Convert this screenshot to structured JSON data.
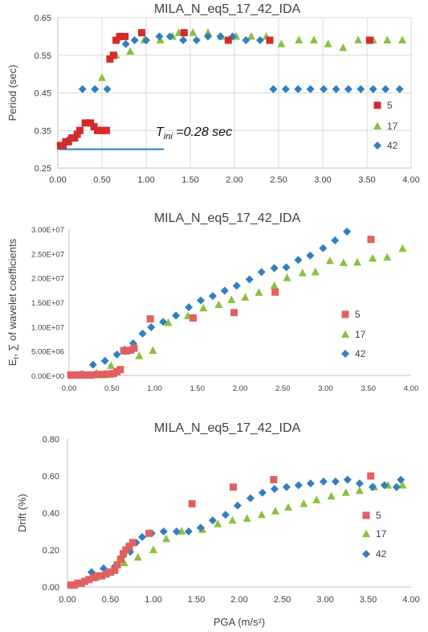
{
  "colors": {
    "s5": "#d42a2a",
    "s5_light": "#e06060",
    "s17": "#8cbf3f",
    "s42": "#2f7fc1",
    "annotation_line": "#1f85c0",
    "grid": "#d9d9d9"
  },
  "chart_data": [
    {
      "type": "scatter",
      "title": "MILA_N_eq5_17_42_IDA",
      "xlabel": "",
      "ylabel": "Period (sec)",
      "xlim": [
        0,
        4
      ],
      "ylim": [
        0.25,
        0.65
      ],
      "xticks": [
        "0.00",
        "0.50",
        "1.00",
        "1.50",
        "2.00",
        "2.50",
        "3.00",
        "3.50",
        "4.00"
      ],
      "yticks": [
        "0.25",
        "0.35",
        "0.45",
        "0.55",
        "0.65"
      ],
      "grid": true,
      "legend_position": "right",
      "annotation": {
        "base": "T",
        "sub": "ini",
        "text": " =0.28 sec",
        "line_y": 0.3,
        "line_x": [
          0,
          1.2
        ]
      },
      "series": [
        {
          "name": "5",
          "marker": "square",
          "points": [
            [
              0.03,
              0.31
            ],
            [
              0.06,
              0.31
            ],
            [
              0.09,
              0.32
            ],
            [
              0.12,
              0.32
            ],
            [
              0.16,
              0.33
            ],
            [
              0.19,
              0.33
            ],
            [
              0.22,
              0.34
            ],
            [
              0.25,
              0.35
            ],
            [
              0.31,
              0.37
            ],
            [
              0.37,
              0.37
            ],
            [
              0.41,
              0.36
            ],
            [
              0.45,
              0.35
            ],
            [
              0.48,
              0.35
            ],
            [
              0.52,
              0.35
            ],
            [
              0.55,
              0.35
            ],
            [
              0.59,
              0.54
            ],
            [
              0.63,
              0.55
            ],
            [
              0.66,
              0.59
            ],
            [
              0.7,
              0.6
            ],
            [
              0.76,
              0.6
            ],
            [
              0.95,
              0.61
            ],
            [
              1.43,
              0.61
            ],
            [
              1.93,
              0.59
            ],
            [
              2.4,
              0.59
            ],
            [
              3.53,
              0.59
            ]
          ]
        },
        {
          "name": "17",
          "marker": "triangle",
          "points": [
            [
              0.19,
              0.33
            ],
            [
              0.34,
              0.37
            ],
            [
              0.5,
              0.49
            ],
            [
              0.66,
              0.55
            ],
            [
              0.82,
              0.56
            ],
            [
              0.98,
              0.59
            ],
            [
              1.16,
              0.59
            ],
            [
              1.3,
              0.6
            ],
            [
              1.37,
              0.61
            ],
            [
              1.53,
              0.61
            ],
            [
              1.7,
              0.61
            ],
            [
              1.85,
              0.6
            ],
            [
              2.02,
              0.6
            ],
            [
              2.19,
              0.6
            ],
            [
              2.36,
              0.6
            ],
            [
              2.53,
              0.58
            ],
            [
              2.73,
              0.59
            ],
            [
              2.9,
              0.59
            ],
            [
              3.06,
              0.58
            ],
            [
              3.23,
              0.57
            ],
            [
              3.4,
              0.59
            ],
            [
              3.57,
              0.59
            ],
            [
              3.73,
              0.59
            ],
            [
              3.9,
              0.59
            ]
          ]
        },
        {
          "name": "42",
          "marker": "diamond",
          "points": [
            [
              0.14,
              0.33
            ],
            [
              0.28,
              0.46
            ],
            [
              0.42,
              0.46
            ],
            [
              0.56,
              0.46
            ],
            [
              0.67,
              0.59
            ],
            [
              0.77,
              0.58
            ],
            [
              0.87,
              0.59
            ],
            [
              1.0,
              0.59
            ],
            [
              1.15,
              0.6
            ],
            [
              1.27,
              0.6
            ],
            [
              1.42,
              0.59
            ],
            [
              1.57,
              0.59
            ],
            [
              1.7,
              0.6
            ],
            [
              1.84,
              0.6
            ],
            [
              1.98,
              0.6
            ],
            [
              2.13,
              0.59
            ],
            [
              2.29,
              0.59
            ],
            [
              2.44,
              0.46
            ],
            [
              2.58,
              0.46
            ],
            [
              2.72,
              0.46
            ],
            [
              2.86,
              0.46
            ],
            [
              3.01,
              0.46
            ],
            [
              3.15,
              0.46
            ],
            [
              3.29,
              0.46
            ],
            [
              3.43,
              0.46
            ],
            [
              3.57,
              0.46
            ],
            [
              3.71,
              0.46
            ],
            [
              3.87,
              0.46
            ]
          ]
        }
      ]
    },
    {
      "type": "scatter",
      "title": "MILA_N_eq5_17_42_IDA",
      "xlabel": "",
      "ylabel": "Et, ∑ of wavelet coefficients",
      "ylabel_base": "E",
      "ylabel_sub": "t",
      "ylabel_rest": ", ∑ of wavelet coefficients",
      "xlim": [
        0,
        4
      ],
      "ylim": [
        0,
        30000000
      ],
      "xticks": [
        "0.00",
        "0.50",
        "1.00",
        "1.50",
        "2.00",
        "2.50",
        "3.00",
        "3.50",
        "4.00"
      ],
      "yticks": [
        "0.00E+00",
        "5.00E+06",
        "1.00E+07",
        "1.50E+07",
        "2.00E+07",
        "2.50E+07",
        "3.00E+07"
      ],
      "grid": false,
      "legend_position": "right",
      "series": [
        {
          "name": "5",
          "marker": "square",
          "points": [
            [
              0.02,
              100000
            ],
            [
              0.05,
              100000
            ],
            [
              0.09,
              100000
            ],
            [
              0.12,
              100000
            ],
            [
              0.16,
              100000
            ],
            [
              0.19,
              100000
            ],
            [
              0.23,
              100000
            ],
            [
              0.26,
              100000
            ],
            [
              0.33,
              200000
            ],
            [
              0.37,
              200000
            ],
            [
              0.41,
              200000
            ],
            [
              0.45,
              300000
            ],
            [
              0.48,
              300000
            ],
            [
              0.52,
              400000
            ],
            [
              0.56,
              800000
            ],
            [
              0.6,
              1200000
            ],
            [
              0.64,
              5100000
            ],
            [
              0.67,
              5000000
            ],
            [
              0.72,
              5200000
            ],
            [
              0.76,
              5600000
            ],
            [
              0.95,
              11600000
            ],
            [
              1.45,
              11800000
            ],
            [
              1.93,
              12900000
            ],
            [
              2.41,
              17100000
            ],
            [
              3.53,
              27900000
            ]
          ]
        },
        {
          "name": "17",
          "marker": "triangle",
          "points": [
            [
              0.16,
              300000
            ],
            [
              0.32,
              500000
            ],
            [
              0.49,
              2000000
            ],
            [
              0.65,
              5300000
            ],
            [
              0.82,
              4000000
            ],
            [
              0.98,
              5100000
            ],
            [
              1.16,
              10800000
            ],
            [
              1.39,
              12200000
            ],
            [
              1.57,
              13800000
            ],
            [
              1.75,
              14500000
            ],
            [
              1.9,
              15500000
            ],
            [
              2.06,
              16000000
            ],
            [
              2.22,
              17000000
            ],
            [
              2.4,
              18400000
            ],
            [
              2.55,
              20000000
            ],
            [
              2.73,
              21000000
            ],
            [
              2.88,
              21200000
            ],
            [
              3.05,
              23500000
            ],
            [
              3.21,
              23100000
            ],
            [
              3.37,
              23200000
            ],
            [
              3.55,
              24000000
            ],
            [
              3.72,
              24200000
            ],
            [
              3.9,
              26000000
            ]
          ]
        },
        {
          "name": "42",
          "marker": "diamond",
          "points": [
            [
              0.14,
              200000
            ],
            [
              0.28,
              2200000
            ],
            [
              0.42,
              3000000
            ],
            [
              0.56,
              4300000
            ],
            [
              0.65,
              5300000
            ],
            [
              0.75,
              6600000
            ],
            [
              0.86,
              8600000
            ],
            [
              0.96,
              9900000
            ],
            [
              1.1,
              11000000
            ],
            [
              1.25,
              12300000
            ],
            [
              1.4,
              14000000
            ],
            [
              1.54,
              15400000
            ],
            [
              1.68,
              16300000
            ],
            [
              1.82,
              17400000
            ],
            [
              1.96,
              18400000
            ],
            [
              2.11,
              19700000
            ],
            [
              2.25,
              21200000
            ],
            [
              2.4,
              22000000
            ],
            [
              2.54,
              22200000
            ],
            [
              2.68,
              23700000
            ],
            [
              2.82,
              24600000
            ],
            [
              2.97,
              26100000
            ],
            [
              3.11,
              27700000
            ],
            [
              3.25,
              29500000
            ]
          ]
        }
      ]
    },
    {
      "type": "scatter",
      "title": "MILA_N_eq5_17_42_IDA",
      "xlabel": "PGA (m/s²)",
      "ylabel": "Drift (%)",
      "xlim": [
        0,
        4
      ],
      "ylim": [
        0,
        0.8
      ],
      "xticks": [
        "0.00",
        "0.50",
        "1.00",
        "1.50",
        "2.00",
        "2.50",
        "3.00",
        "3.50",
        "4.00"
      ],
      "yticks": [
        "0.00",
        "0.20",
        "0.40",
        "0.60",
        "0.80"
      ],
      "grid": false,
      "legend_position": "right",
      "series": [
        {
          "name": "5",
          "marker": "square",
          "points": [
            [
              0.04,
              0.01
            ],
            [
              0.08,
              0.01
            ],
            [
              0.12,
              0.02
            ],
            [
              0.16,
              0.02
            ],
            [
              0.2,
              0.03
            ],
            [
              0.25,
              0.04
            ],
            [
              0.3,
              0.05
            ],
            [
              0.35,
              0.06
            ],
            [
              0.4,
              0.06
            ],
            [
              0.45,
              0.07
            ],
            [
              0.5,
              0.08
            ],
            [
              0.55,
              0.09
            ],
            [
              0.58,
              0.12
            ],
            [
              0.62,
              0.15
            ],
            [
              0.65,
              0.18
            ],
            [
              0.68,
              0.2
            ],
            [
              0.72,
              0.22
            ],
            [
              0.76,
              0.24
            ],
            [
              0.95,
              0.29
            ],
            [
              1.45,
              0.45
            ],
            [
              1.93,
              0.54
            ],
            [
              2.4,
              0.58
            ],
            [
              3.53,
              0.6
            ]
          ]
        },
        {
          "name": "17",
          "marker": "triangle",
          "points": [
            [
              0.16,
              0.02
            ],
            [
              0.33,
              0.05
            ],
            [
              0.49,
              0.08
            ],
            [
              0.66,
              0.13
            ],
            [
              0.82,
              0.16
            ],
            [
              1.0,
              0.2
            ],
            [
              1.15,
              0.26
            ],
            [
              1.33,
              0.3
            ],
            [
              1.57,
              0.31
            ],
            [
              1.75,
              0.34
            ],
            [
              1.92,
              0.36
            ],
            [
              2.09,
              0.37
            ],
            [
              2.26,
              0.39
            ],
            [
              2.42,
              0.41
            ],
            [
              2.57,
              0.43
            ],
            [
              2.75,
              0.45
            ],
            [
              2.9,
              0.47
            ],
            [
              3.07,
              0.49
            ],
            [
              3.24,
              0.51
            ],
            [
              3.4,
              0.52
            ],
            [
              3.57,
              0.54
            ],
            [
              3.73,
              0.55
            ],
            [
              3.9,
              0.55
            ]
          ]
        },
        {
          "name": "42",
          "marker": "diamond",
          "points": [
            [
              0.14,
              0.02
            ],
            [
              0.28,
              0.08
            ],
            [
              0.42,
              0.1
            ],
            [
              0.55,
              0.11
            ],
            [
              0.63,
              0.16
            ],
            [
              0.73,
              0.19
            ],
            [
              0.8,
              0.24
            ],
            [
              0.87,
              0.27
            ],
            [
              0.98,
              0.29
            ],
            [
              1.12,
              0.3
            ],
            [
              1.27,
              0.3
            ],
            [
              1.41,
              0.3
            ],
            [
              1.55,
              0.32
            ],
            [
              1.69,
              0.36
            ],
            [
              1.84,
              0.39
            ],
            [
              1.98,
              0.44
            ],
            [
              2.13,
              0.48
            ],
            [
              2.27,
              0.51
            ],
            [
              2.41,
              0.53
            ],
            [
              2.55,
              0.54
            ],
            [
              2.69,
              0.55
            ],
            [
              2.83,
              0.56
            ],
            [
              2.98,
              0.57
            ],
            [
              3.12,
              0.57
            ],
            [
              3.26,
              0.58
            ],
            [
              3.4,
              0.56
            ],
            [
              3.55,
              0.54
            ],
            [
              3.69,
              0.55
            ],
            [
              3.83,
              0.54
            ],
            [
              3.88,
              0.58
            ]
          ]
        }
      ]
    }
  ]
}
